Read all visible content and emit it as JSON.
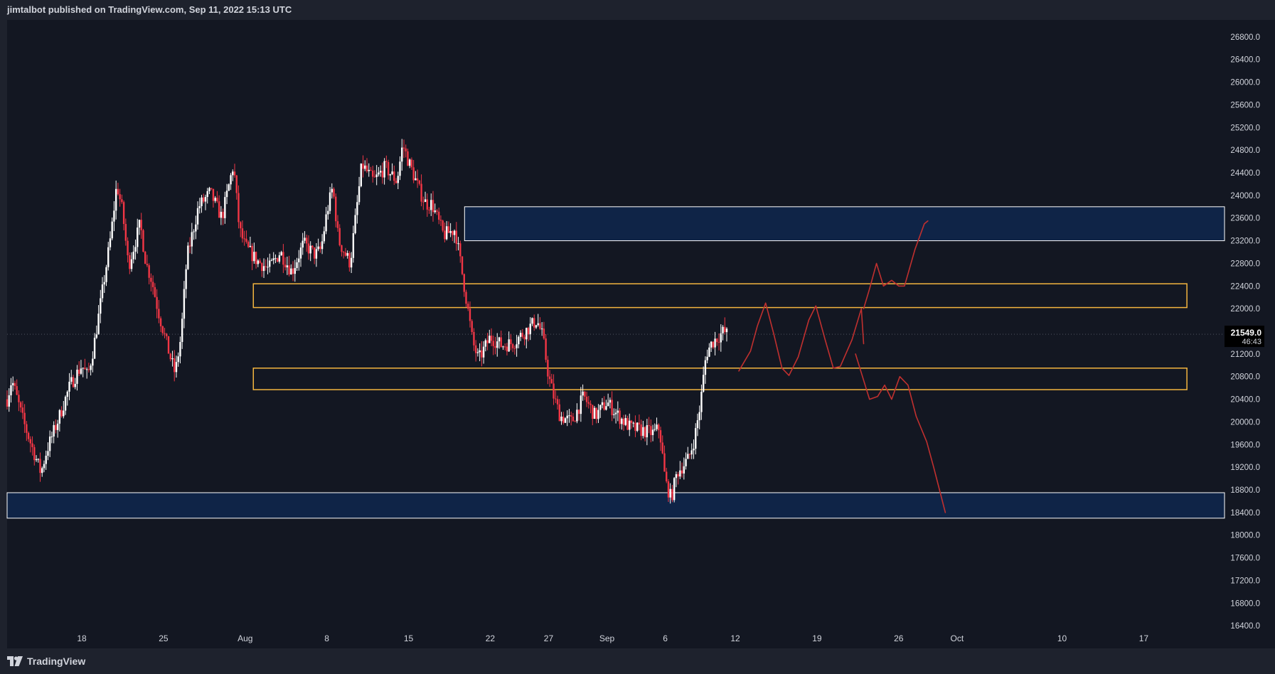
{
  "header": {
    "publish_text": "jimtalbot published on TradingView.com, Sep 11, 2022 15:13 UTC"
  },
  "footer": {
    "brand": "TradingView",
    "logo_icon": "tradingview-logo-icon"
  },
  "colors": {
    "background": "#131722",
    "frame": "#1e222d",
    "bull_candle": "#ffffff",
    "bear_candle": "#f23645",
    "zone_fill": "#0f2447",
    "zone_border": "#ffffff",
    "level_border": "#f4b53f",
    "projection": "#c0302f",
    "price_label_bg": "#000000",
    "axis_text": "#d1d4dc"
  },
  "chart_data": {
    "type": "candlestick",
    "symbol": "",
    "ylim": [
      16000,
      27100
    ],
    "y_ticks": [
      "26800.0",
      "26400.0",
      "26000.0",
      "25600.0",
      "25200.0",
      "24800.0",
      "24400.0",
      "24000.0",
      "23600.0",
      "23200.0",
      "22800.0",
      "22400.0",
      "22000.0",
      "21600.0",
      "21200.0",
      "20800.0",
      "20400.0",
      "20000.0",
      "19600.0",
      "19200.0",
      "18800.0",
      "18400.0",
      "18000.0",
      "17600.0",
      "17200.0",
      "16800.0",
      "16400.0"
    ],
    "x_ticks": [
      {
        "label": "18",
        "day": 18
      },
      {
        "label": "25",
        "day": 25
      },
      {
        "label": "Aug",
        "day": 32
      },
      {
        "label": "8",
        "day": 39
      },
      {
        "label": "15",
        "day": 46
      },
      {
        "label": "22",
        "day": 53
      },
      {
        "label": "27",
        "day": 58
      },
      {
        "label": "Sep",
        "day": 63
      },
      {
        "label": "6",
        "day": 68
      },
      {
        "label": "12",
        "day": 74
      },
      {
        "label": "19",
        "day": 81
      },
      {
        "label": "26",
        "day": 88
      },
      {
        "label": "Oct",
        "day": 93
      },
      {
        "label": "10",
        "day": 102
      },
      {
        "label": "17",
        "day": 109
      }
    ],
    "x_unit": "days from 2022-07-01",
    "xlim": [
      11.6,
      115.8
    ],
    "current_price": {
      "value": "21549.0",
      "countdown": "46:43",
      "price": 21549
    },
    "price_path": [
      [
        11.6,
        20400
      ],
      [
        12,
        20750
      ],
      [
        13,
        20000
      ],
      [
        14,
        19400
      ],
      [
        14.5,
        19100
      ],
      [
        15,
        19500
      ],
      [
        16,
        20050
      ],
      [
        17,
        20650
      ],
      [
        18,
        21000
      ],
      [
        18.5,
        20800
      ],
      [
        19,
        21300
      ],
      [
        19.5,
        21950
      ],
      [
        20.5,
        23300
      ],
      [
        21,
        24200
      ],
      [
        21.5,
        23700
      ],
      [
        22,
        22750
      ],
      [
        23,
        23500
      ],
      [
        23.5,
        22800
      ],
      [
        24,
        22500
      ],
      [
        24.5,
        22000
      ],
      [
        25,
        21600
      ],
      [
        25.5,
        21200
      ],
      [
        26,
        20850
      ],
      [
        26.5,
        21500
      ],
      [
        27,
        22900
      ],
      [
        28,
        23800
      ],
      [
        29,
        24050
      ],
      [
        30,
        23600
      ],
      [
        31,
        24550
      ],
      [
        31.5,
        23400
      ],
      [
        32,
        23100
      ],
      [
        33,
        22850
      ],
      [
        34,
        22700
      ],
      [
        35,
        23000
      ],
      [
        36,
        22650
      ],
      [
        37,
        23150
      ],
      [
        38,
        22950
      ],
      [
        38.5,
        23050
      ],
      [
        39,
        23700
      ],
      [
        39.5,
        24150
      ],
      [
        40,
        23200
      ],
      [
        41,
        22800
      ],
      [
        42,
        24550
      ],
      [
        43,
        24250
      ],
      [
        44,
        24500
      ],
      [
        45,
        24250
      ],
      [
        45.5,
        24900
      ],
      [
        46,
        24600
      ],
      [
        47,
        24050
      ],
      [
        47.5,
        23850
      ],
      [
        48,
        23850
      ],
      [
        49,
        23300
      ],
      [
        50,
        23400
      ],
      [
        51,
        22100
      ],
      [
        51.5,
        21400
      ],
      [
        52,
        21100
      ],
      [
        53,
        21500
      ],
      [
        54,
        21350
      ],
      [
        55,
        21400
      ],
      [
        56,
        21600
      ],
      [
        57,
        21800
      ],
      [
        57.5,
        21500
      ],
      [
        58,
        20800
      ],
      [
        58.5,
        20400
      ],
      [
        59,
        20100
      ],
      [
        60,
        20000
      ],
      [
        61,
        20450
      ],
      [
        62,
        20100
      ],
      [
        63,
        20350
      ],
      [
        64,
        20100
      ],
      [
        65,
        19900
      ],
      [
        66,
        19850
      ],
      [
        67,
        19800
      ],
      [
        67.5,
        19900
      ],
      [
        68,
        18950
      ],
      [
        68.5,
        18650
      ],
      [
        69,
        19100
      ],
      [
        70,
        19350
      ],
      [
        70.5,
        19700
      ],
      [
        71,
        20300
      ],
      [
        71.5,
        21200
      ],
      [
        72,
        21400
      ],
      [
        72.5,
        21500
      ],
      [
        73,
        21600
      ],
      [
        73.3,
        21549
      ]
    ],
    "zones": [
      {
        "kind": "supply",
        "start": 50.8,
        "end": 116,
        "low": 23200,
        "high": 23800
      },
      {
        "kind": "resistance",
        "start": 32.7,
        "end": 112.7,
        "low": 22020,
        "high": 22440
      },
      {
        "kind": "support",
        "start": 32.7,
        "end": 112.7,
        "low": 20570,
        "high": 20950
      },
      {
        "kind": "demand",
        "start": 11.6,
        "end": 116,
        "low": 18300,
        "high": 18750
      }
    ],
    "projections": [
      [
        [
          74.3,
          20900
        ],
        [
          75.3,
          21250
        ],
        [
          75.9,
          21700
        ],
        [
          76.6,
          22100
        ],
        [
          77.3,
          21550
        ],
        [
          78,
          20950
        ],
        [
          78.6,
          20820
        ],
        [
          79.4,
          21150
        ],
        [
          80.3,
          21800
        ],
        [
          80.9,
          22050
        ],
        [
          81.7,
          21450
        ],
        [
          82.4,
          20950
        ],
        [
          83,
          20980
        ],
        [
          84,
          21450
        ],
        [
          84.8,
          22000
        ],
        [
          85,
          21380
        ]
      ],
      [
        [
          85,
          22000
        ],
        [
          85.5,
          22350
        ],
        [
          86.1,
          22800
        ],
        [
          86.7,
          22400
        ],
        [
          87.4,
          22500
        ],
        [
          88,
          22400
        ],
        [
          88.5,
          22400
        ],
        [
          89.4,
          23050
        ],
        [
          90.2,
          23500
        ],
        [
          90.5,
          23550
        ]
      ],
      [
        [
          84.3,
          21200
        ],
        [
          84.9,
          20800
        ],
        [
          85.5,
          20400
        ],
        [
          86.2,
          20450
        ],
        [
          86.8,
          20650
        ],
        [
          87.4,
          20400
        ],
        [
          88.1,
          20800
        ],
        [
          88.8,
          20650
        ],
        [
          89.5,
          20100
        ],
        [
          90.4,
          19650
        ],
        [
          91,
          19200
        ],
        [
          91.5,
          18800
        ],
        [
          92,
          18400
        ]
      ]
    ]
  }
}
